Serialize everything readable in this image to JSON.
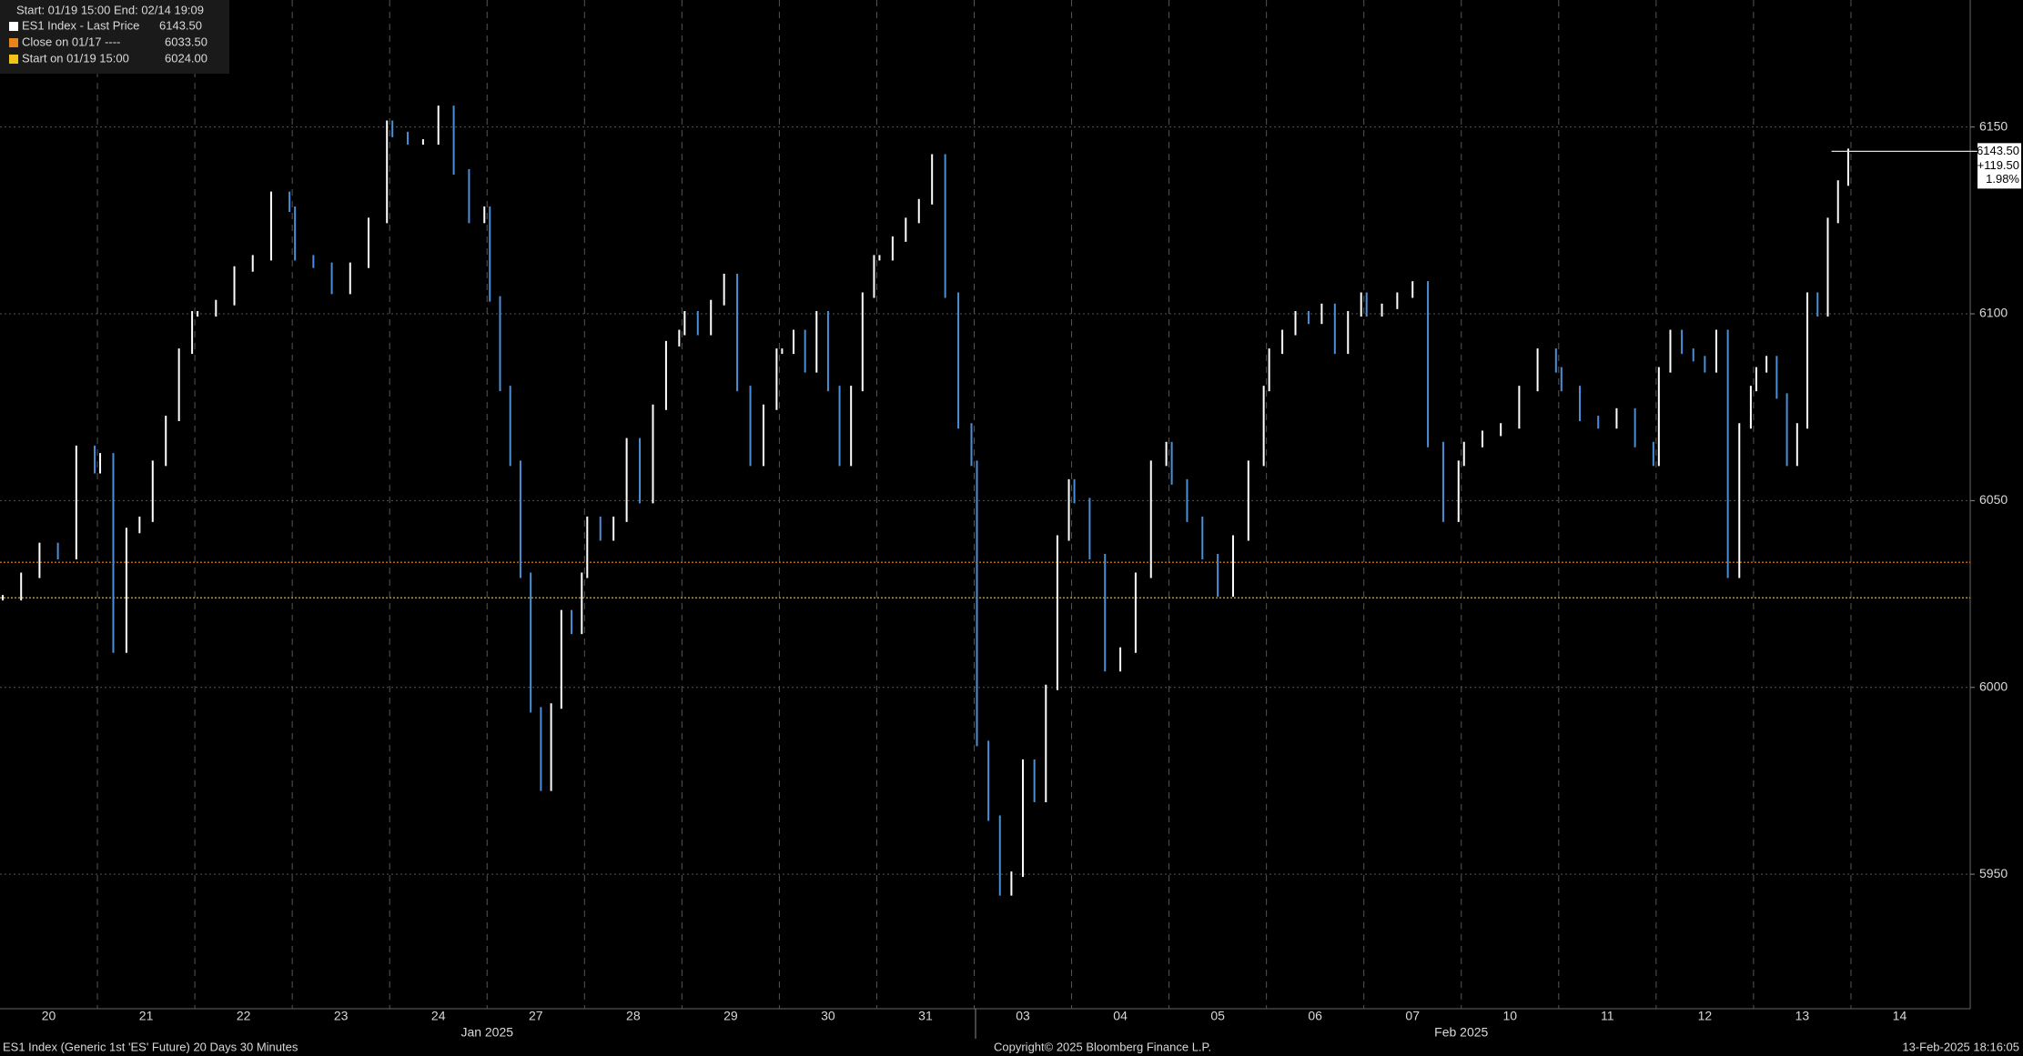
{
  "chart_data": {
    "type": "bar-line",
    "subtitle": "Start: 01/19 15:00 End: 02/14 19:09",
    "series": {
      "name": "ES1 Index - Last Price",
      "color": "#ffffff",
      "up_color": "#ffffff",
      "down_color": "#4a8fd8"
    },
    "last_price": {
      "value": 6143.5,
      "label": "6143.50"
    },
    "change": {
      "value": 119.5,
      "label": "+119.50"
    },
    "change_pct": {
      "value": 1.98,
      "label": "1.98%"
    },
    "reference_lines": [
      {
        "name": "Close on 01/17 ----",
        "color": "#e8851a",
        "value": 6033.5,
        "value_label": "6033.50"
      },
      {
        "name": "Start on 01/19 15:00",
        "color": "#f0c419",
        "value": 6024,
        "value_label": "6024.00"
      }
    ],
    "days": [
      {
        "label": "20",
        "values": [
          6024,
          6030,
          6038,
          6035,
          6064,
          6058
        ]
      },
      {
        "label": "21",
        "values": [
          6062,
          6010,
          6042,
          6045,
          6060,
          6072,
          6090,
          6100
        ]
      },
      {
        "label": "22",
        "values": [
          6100,
          6103,
          6112,
          6115,
          6132,
          6128
        ]
      },
      {
        "label": "23",
        "values": [
          6115,
          6113,
          6106,
          6113,
          6125,
          6151
        ]
      },
      {
        "label": "24",
        "values": [
          6148,
          6146,
          6146,
          6155,
          6138,
          6125,
          6128
        ]
      },
      {
        "label": "27",
        "values": [
          6104,
          6080,
          6060,
          6030,
          5994,
          5973,
          5995,
          6020,
          6015,
          6030
        ]
      },
      {
        "label": "28",
        "values": [
          6045,
          6040,
          6045,
          6066,
          6050,
          6075,
          6092,
          6095
        ]
      },
      {
        "label": "29",
        "values": [
          6100,
          6095,
          6103,
          6110,
          6080,
          6060,
          6075,
          6090
        ]
      },
      {
        "label": "30",
        "values": [
          6090,
          6095,
          6085,
          6100,
          6080,
          6060,
          6080,
          6105,
          6115
        ]
      },
      {
        "label": "31",
        "values": [
          6115,
          6120,
          6125,
          6130,
          6142,
          6105,
          6070,
          6060
        ]
      },
      {
        "label": "03",
        "values": [
          5985,
          5965,
          5945,
          5950,
          5980,
          5970,
          6000,
          6040,
          6055
        ]
      },
      {
        "label": "04",
        "values": [
          6050,
          6035,
          6005,
          6010,
          6030,
          6060,
          6065
        ]
      },
      {
        "label": "05",
        "values": [
          6055,
          6045,
          6035,
          6025,
          6040,
          6060,
          6080
        ]
      },
      {
        "label": "06",
        "values": [
          6090,
          6095,
          6100,
          6098,
          6102,
          6090,
          6100,
          6105
        ]
      },
      {
        "label": "07",
        "values": [
          6100,
          6102,
          6105,
          6108,
          6065,
          6045,
          6060
        ]
      },
      {
        "label": "10",
        "values": [
          6065,
          6068,
          6070,
          6080,
          6090,
          6085
        ]
      },
      {
        "label": "11",
        "values": [
          6080,
          6072,
          6070,
          6074,
          6065,
          6060
        ]
      },
      {
        "label": "12",
        "values": [
          6085,
          6095,
          6090,
          6088,
          6085,
          6095,
          6030,
          6070,
          6080
        ]
      },
      {
        "label": "13",
        "values": [
          6085,
          6088,
          6078,
          6060,
          6070,
          6105,
          6100,
          6125,
          6135,
          6143.5
        ]
      },
      {
        "label": "14",
        "values": []
      }
    ],
    "months": [
      "Jan 2025",
      "Feb 2025"
    ],
    "ylim": [
      5914,
      6184
    ],
    "yticks": [
      5950,
      6000,
      6050,
      6100,
      6150
    ],
    "grid": true,
    "footer_left": "ES1 Index (Generic 1st 'ES' Future) 20 Days 30 Minutes",
    "footer_center": "Copyright© 2025 Bloomberg Finance L.P.",
    "footer_right": "13-Feb-2025 18:16:05"
  }
}
